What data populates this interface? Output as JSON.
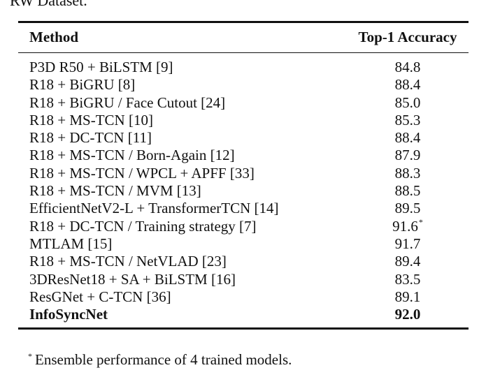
{
  "caption_tail": "RW Dataset.",
  "table": {
    "headers": {
      "method": "Method",
      "accuracy": "Top-1 Accuracy"
    },
    "rows": [
      {
        "method": "P3D R50 + BiLSTM [9]",
        "accuracy": "84.8"
      },
      {
        "method": "R18 + BiGRU [8]",
        "accuracy": "88.4"
      },
      {
        "method": "R18 + BiGRU / Face Cutout [24]",
        "accuracy": "85.0"
      },
      {
        "method": "R18 + MS-TCN [10]",
        "accuracy": "85.3"
      },
      {
        "method": "R18 + DC-TCN [11]",
        "accuracy": "88.4"
      },
      {
        "method": "R18 + MS-TCN / Born-Again [12]",
        "accuracy": "87.9"
      },
      {
        "method": "R18 + MS-TCN / WPCL + APFF [33]",
        "accuracy": "88.3"
      },
      {
        "method": "R18 + MS-TCN / MVM [13]",
        "accuracy": "88.5"
      },
      {
        "method": "EfficientNetV2-L + TransformerTCN [14]",
        "accuracy": "89.5"
      },
      {
        "method": "R18 + DC-TCN / Training strategy [7]",
        "accuracy": "91.6",
        "marker": "*"
      },
      {
        "method": "MTLAM [15]",
        "accuracy": "91.7"
      },
      {
        "method": "R18 + MS-TCN / NetVLAD [23]",
        "accuracy": "89.4"
      },
      {
        "method": "3DResNet18 + SA + BiLSTM [16]",
        "accuracy": "83.5"
      },
      {
        "method": "ResGNet + C-TCN [36]",
        "accuracy": "89.1"
      },
      {
        "method": "InfoSyncNet",
        "accuracy": "92.0",
        "bold": true
      }
    ]
  },
  "footnote": {
    "marker": "*",
    "text": "Ensemble performance of 4 trained models."
  }
}
